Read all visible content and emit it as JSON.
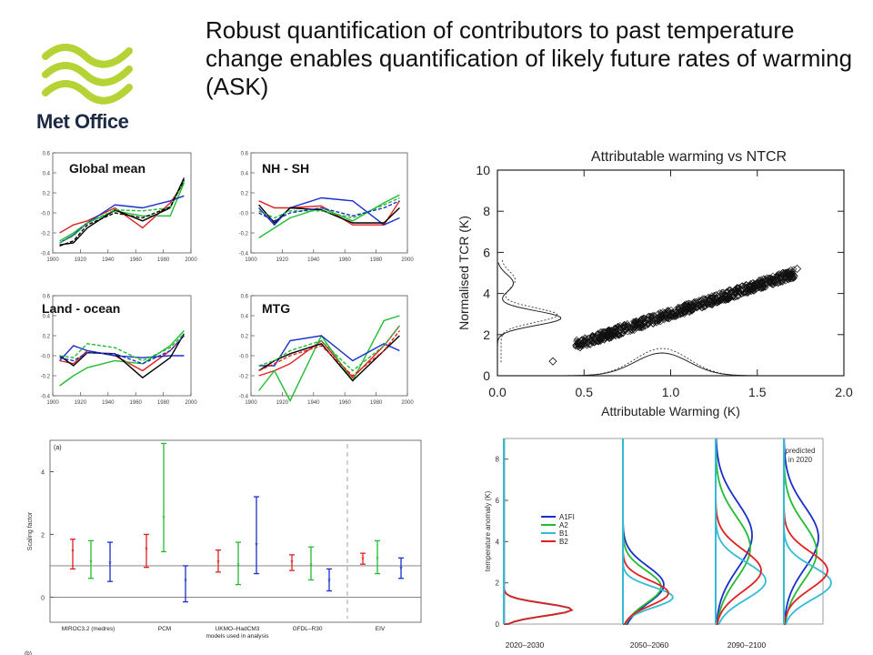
{
  "title": "Robust quantification of contributors to past temperature change enables quantification of likely future rates of warming (ASK)",
  "logo_text": "Met Office",
  "colors": {
    "logo_green": "#b5d334",
    "logo_text": "#1d2a44",
    "black": "#000000",
    "red": "#e02020",
    "green": "#22bb33",
    "blue": "#1a2fc8",
    "cyan": "#33bbd6"
  },
  "chart_data": [
    {
      "type": "line",
      "panel_label": "Global mean",
      "x": [
        1905,
        1915,
        1925,
        1945,
        1965,
        1985,
        1995
      ],
      "xticks": [
        "1900",
        "1920",
        "1940",
        "1960",
        "1980",
        "2000"
      ],
      "xlim": [
        1900,
        2000
      ],
      "yticks": [
        "-0.4",
        "-0.2",
        "-0.0",
        "0.2",
        "0.4",
        "0.6"
      ],
      "ylim": [
        -0.4,
        0.6
      ],
      "series": [
        {
          "color": "#e02020",
          "dash": false,
          "values": [
            -0.2,
            -0.12,
            -0.08,
            0.05,
            -0.15,
            0.1,
            0.3
          ]
        },
        {
          "color": "#22bb33",
          "dash": false,
          "values": [
            -0.28,
            -0.2,
            -0.1,
            0.02,
            -0.03,
            -0.03,
            0.3
          ]
        },
        {
          "color": "#1a2fc8",
          "dash": false,
          "values": [
            -0.3,
            -0.22,
            -0.1,
            0.08,
            0.05,
            0.12,
            0.17
          ]
        },
        {
          "color": "#000000",
          "dash": false,
          "values": [
            -0.32,
            -0.3,
            -0.15,
            0.03,
            -0.08,
            0.05,
            0.35
          ]
        },
        {
          "color": "#22bb33",
          "dash": true,
          "values": [
            -0.3,
            -0.23,
            -0.1,
            0.03,
            0.02,
            0.05,
            0.32
          ]
        },
        {
          "color": "#000000",
          "dash": true,
          "values": [
            -0.33,
            -0.28,
            -0.12,
            0.0,
            -0.05,
            0.06,
            0.33
          ]
        }
      ]
    },
    {
      "type": "line",
      "panel_label": "NH - SH",
      "x": [
        1905,
        1915,
        1925,
        1945,
        1965,
        1985,
        1995
      ],
      "xticks": [
        "1900",
        "1920",
        "1940",
        "1960",
        "1980",
        "2000"
      ],
      "xlim": [
        1900,
        2000
      ],
      "yticks": [
        "-0.4",
        "-0.2",
        "-0.0",
        "0.2",
        "0.4",
        "0.6"
      ],
      "ylim": [
        -0.4,
        0.6
      ],
      "series": [
        {
          "color": "#e02020",
          "dash": false,
          "values": [
            0.12,
            0.05,
            0.05,
            0.07,
            -0.12,
            -0.12,
            0.12
          ]
        },
        {
          "color": "#22bb33",
          "dash": false,
          "values": [
            -0.25,
            -0.15,
            -0.05,
            0.05,
            -0.08,
            0.1,
            0.18
          ]
        },
        {
          "color": "#1a2fc8",
          "dash": false,
          "values": [
            0.05,
            -0.12,
            0.05,
            0.15,
            0.12,
            -0.12,
            -0.05
          ]
        },
        {
          "color": "#000000",
          "dash": false,
          "values": [
            0.08,
            -0.1,
            0.05,
            0.03,
            -0.1,
            -0.1,
            0.05
          ]
        },
        {
          "color": "#22bb33",
          "dash": true,
          "values": [
            0.02,
            -0.05,
            0.02,
            0.02,
            -0.05,
            0.08,
            0.15
          ]
        },
        {
          "color": "#1a2fc8",
          "dash": true,
          "values": [
            0.0,
            -0.08,
            0.0,
            0.05,
            -0.03,
            0.05,
            0.12
          ]
        }
      ]
    },
    {
      "type": "line",
      "panel_label": "Land - ocean",
      "x": [
        1905,
        1915,
        1925,
        1945,
        1965,
        1985,
        1995
      ],
      "xticks": [
        "1900",
        "1920",
        "1940",
        "1960",
        "1980",
        "2000"
      ],
      "xlim": [
        1900,
        2000
      ],
      "yticks": [
        "-0.4",
        "-0.2",
        "-0.0",
        "0.2",
        "0.4",
        "0.6"
      ],
      "ylim": [
        -0.4,
        0.6
      ],
      "series": [
        {
          "color": "#e02020",
          "dash": false,
          "values": [
            -0.05,
            -0.08,
            0.05,
            0.0,
            -0.15,
            0.05,
            0.2
          ]
        },
        {
          "color": "#22bb33",
          "dash": false,
          "values": [
            -0.3,
            -0.2,
            -0.12,
            -0.05,
            -0.08,
            0.1,
            0.25
          ]
        },
        {
          "color": "#1a2fc8",
          "dash": false,
          "values": [
            -0.05,
            0.1,
            0.05,
            0.0,
            -0.02,
            0.0,
            0.0
          ]
        },
        {
          "color": "#000000",
          "dash": false,
          "values": [
            0.0,
            -0.1,
            0.03,
            0.02,
            -0.22,
            -0.02,
            0.22
          ]
        },
        {
          "color": "#22bb33",
          "dash": true,
          "values": [
            0.0,
            -0.02,
            0.12,
            0.08,
            -0.05,
            0.08,
            0.22
          ]
        },
        {
          "color": "#1a2fc8",
          "dash": true,
          "values": [
            -0.02,
            -0.05,
            0.03,
            0.02,
            -0.08,
            0.05,
            0.2
          ]
        }
      ]
    },
    {
      "type": "line",
      "panel_label": "MTG",
      "x": [
        1905,
        1915,
        1925,
        1945,
        1965,
        1985,
        1995
      ],
      "xticks": [
        "1900",
        "1920",
        "1940",
        "1960",
        "1980",
        "2000"
      ],
      "xlim": [
        1900,
        2000
      ],
      "yticks": [
        "-0.4",
        "-0.2",
        "-0.0",
        "0.2",
        "0.4",
        "0.6"
      ],
      "ylim": [
        -0.4,
        0.6
      ],
      "series": [
        {
          "color": "#e02020",
          "dash": false,
          "values": [
            -0.2,
            -0.15,
            -0.08,
            0.15,
            -0.22,
            0.1,
            0.3
          ]
        },
        {
          "color": "#22bb33",
          "dash": false,
          "values": [
            -0.35,
            -0.15,
            -0.45,
            0.2,
            -0.25,
            0.35,
            0.4
          ]
        },
        {
          "color": "#1a2fc8",
          "dash": false,
          "values": [
            -0.1,
            -0.1,
            0.15,
            0.2,
            -0.05,
            0.12,
            0.05
          ]
        },
        {
          "color": "#000000",
          "dash": false,
          "values": [
            -0.15,
            -0.05,
            0.02,
            0.12,
            -0.25,
            0.05,
            0.2
          ]
        },
        {
          "color": "#22bb33",
          "dash": true,
          "values": [
            -0.1,
            -0.05,
            0.05,
            0.15,
            -0.15,
            0.1,
            0.3
          ]
        },
        {
          "color": "#e02020",
          "dash": true,
          "values": [
            -0.15,
            -0.08,
            0.0,
            0.1,
            -0.2,
            0.05,
            0.25
          ]
        }
      ]
    },
    {
      "type": "scatter",
      "title": "Attributable warming vs NTCR",
      "xlabel": "Attributable Warming (K)",
      "ylabel": "Normalised TCR (K)",
      "xlim": [
        0,
        2
      ],
      "ylim": [
        0,
        10
      ],
      "xticks": [
        "0.0",
        "0.5",
        "1.0",
        "1.5",
        "2.0"
      ],
      "yticks": [
        "0",
        "2",
        "4",
        "6",
        "8",
        "10"
      ],
      "trend": {
        "x_start": 0.45,
        "y_start": 1.5,
        "x_end": 1.72,
        "y_end": 5.0,
        "spread": 0.25
      },
      "outliers": [
        [
          0.32,
          0.7
        ],
        [
          1.73,
          5.2
        ]
      ],
      "left_pdf_peak_y": 2.8,
      "bottom_pdf_peak_x": 0.95
    },
    {
      "type": "errorbar",
      "panel_label": "(a)",
      "ylabel": "Scaling factor",
      "ylim": [
        -0.8,
        5.0
      ],
      "yticks": [
        "0",
        "2",
        "4"
      ],
      "categories": [
        "MIROC3.2 (medres)",
        "PCM",
        "UKMO–HadCM3",
        "GFDL–R30",
        "EIV"
      ],
      "xlabel": "models used in analysis",
      "next_panel_label": "(b)",
      "points": [
        {
          "color": "#e02020",
          "value": 1.45,
          "low": 0.9,
          "high": 1.85
        },
        {
          "color": "#22bb33",
          "value": 1.1,
          "low": 0.6,
          "high": 1.8
        },
        {
          "color": "#1a2fc8",
          "value": 1.05,
          "low": 0.5,
          "high": 1.75
        },
        {
          "color": "#e02020",
          "value": 1.5,
          "low": 0.95,
          "high": 2.0
        },
        {
          "color": "#22bb33",
          "value": 2.5,
          "low": 1.45,
          "high": 4.9
        },
        {
          "color": "#1a2fc8",
          "value": 0.5,
          "low": -0.15,
          "high": 1.0
        },
        {
          "color": "#e02020",
          "value": 1.1,
          "low": 0.8,
          "high": 1.5
        },
        {
          "color": "#22bb33",
          "value": 1.0,
          "low": 0.4,
          "high": 1.75
        },
        {
          "color": "#1a2fc8",
          "value": 1.65,
          "low": 0.75,
          "high": 3.2
        },
        {
          "color": "#e02020",
          "value": 1.1,
          "low": 0.85,
          "high": 1.35
        },
        {
          "color": "#22bb33",
          "value": 1.0,
          "low": 0.55,
          "high": 1.6
        },
        {
          "color": "#1a2fc8",
          "value": 0.5,
          "low": 0.2,
          "high": 0.9
        },
        {
          "color": "#e02020",
          "value": 1.2,
          "low": 1.05,
          "high": 1.4
        },
        {
          "color": "#22bb33",
          "value": 1.2,
          "low": 0.75,
          "high": 1.8
        },
        {
          "color": "#1a2fc8",
          "value": 0.9,
          "low": 0.6,
          "high": 1.25
        }
      ],
      "reference_lines": [
        0,
        1
      ]
    },
    {
      "type": "area",
      "ylabel": "temperature anomaly (K)",
      "ylim": [
        0,
        9
      ],
      "yticks": [
        "0",
        "2",
        "4",
        "6",
        "8"
      ],
      "categories": [
        "2020–2030",
        "2050–2060",
        "2090–2100"
      ],
      "annotation": "predicted in 2020",
      "series": [
        {
          "name": "A1FI",
          "color": "#1a2fc8",
          "peaks": [
            0.7,
            1.9,
            4.3,
            4.2
          ]
        },
        {
          "name": "A2",
          "color": "#22bb33",
          "peaks": [
            0.7,
            1.8,
            3.7,
            3.5
          ]
        },
        {
          "name": "B1",
          "color": "#33bbd6",
          "peaks": [
            0.7,
            1.3,
            2.1,
            2.0
          ]
        },
        {
          "name": "B2",
          "color": "#e02020",
          "peaks": [
            0.7,
            1.5,
            2.6,
            2.6
          ]
        }
      ]
    }
  ]
}
